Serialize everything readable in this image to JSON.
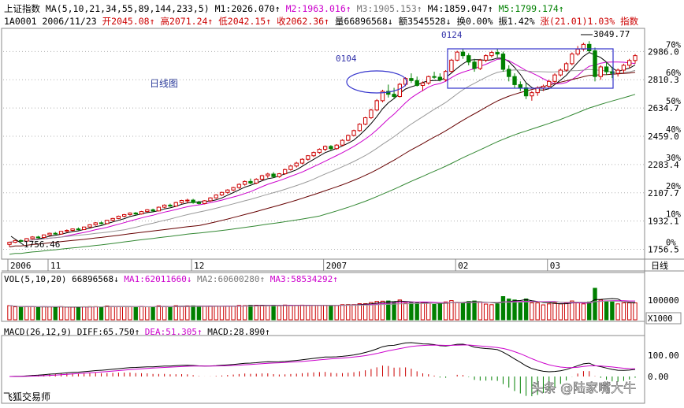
{
  "header": {
    "line1": [
      {
        "text": "上证指数",
        "color": "#000000"
      },
      {
        "text": " MA(5,10,21,34,55,89,144,233,5)",
        "color": "#000000"
      },
      {
        "text": " M1:2026.070↑",
        "color": "#000000"
      },
      {
        "text": " M2:1963.016↑",
        "color": "#cc00cc"
      },
      {
        "text": " M3:1905.153↑",
        "color": "#777777"
      },
      {
        "text": " M4:1859.047↑",
        "color": "#000000"
      },
      {
        "text": " M5:1799.174↑",
        "color": "#008000"
      }
    ],
    "line2": [
      {
        "text": "1A0001",
        "color": "#000000"
      },
      {
        "text": " 2006/11/23",
        "color": "#000000"
      },
      {
        "text": " 开2045.08↑",
        "color": "#cc0000"
      },
      {
        "text": " 高2071.24↑",
        "color": "#cc0000"
      },
      {
        "text": " 低2042.15↑",
        "color": "#cc0000"
      },
      {
        "text": " 收2062.36↑",
        "color": "#cc0000"
      },
      {
        "text": " 量66896568↓",
        "color": "#000000"
      },
      {
        "text": " 额3545528↓",
        "color": "#000000"
      },
      {
        "text": " 换0.00%",
        "color": "#000000"
      },
      {
        "text": " 振1.42%",
        "color": "#000000"
      },
      {
        "text": " 涨(21.01)1.03%",
        "color": "#cc0000"
      },
      {
        "text": " 指数",
        "color": "#cc0000"
      }
    ]
  },
  "chart_data": {
    "type": "candlestick",
    "title": "日线图",
    "dates_start": "2006/10",
    "x_labels": [
      "2006",
      "11",
      "12",
      "2007",
      "02",
      "03",
      "日线"
    ],
    "y_ticks": [
      1756.5,
      1932.1,
      2107.7,
      2283.4,
      2459.0,
      2634.7,
      2810.3,
      2986.0
    ],
    "pct_ticks": [
      "0%",
      "10%",
      "20%",
      "30%",
      "40%",
      "50%",
      "60%",
      "70%"
    ],
    "ylim": [
      1710,
      3110
    ],
    "annotations": {
      "max": "3049.77",
      "min": "1756.46",
      "label_0104": "0104",
      "label_0124": "0124"
    },
    "candles": [
      [
        1787,
        1804,
        1772,
        1800
      ],
      [
        1800,
        1815,
        1795,
        1811
      ],
      [
        1811,
        1818,
        1801,
        1807
      ],
      [
        1807,
        1826,
        1803,
        1823
      ],
      [
        1823,
        1838,
        1817,
        1833
      ],
      [
        1833,
        1840,
        1825,
        1830
      ],
      [
        1830,
        1848,
        1826,
        1846
      ],
      [
        1846,
        1860,
        1840,
        1856
      ],
      [
        1856,
        1864,
        1848,
        1851
      ],
      [
        1851,
        1870,
        1848,
        1868
      ],
      [
        1868,
        1880,
        1862,
        1874
      ],
      [
        1874,
        1886,
        1868,
        1883
      ],
      [
        1883,
        1892,
        1875,
        1879
      ],
      [
        1879,
        1897,
        1876,
        1895
      ],
      [
        1895,
        1912,
        1890,
        1909
      ],
      [
        1909,
        1925,
        1903,
        1921
      ],
      [
        1921,
        1929,
        1911,
        1916
      ],
      [
        1916,
        1940,
        1912,
        1937
      ],
      [
        1937,
        1952,
        1930,
        1948
      ],
      [
        1948,
        1966,
        1944,
        1962
      ],
      [
        1962,
        1976,
        1955,
        1972
      ],
      [
        1972,
        1986,
        1966,
        1982
      ],
      [
        1982,
        1988,
        1970,
        1976
      ],
      [
        1976,
        1995,
        1972,
        1991
      ],
      [
        1991,
        2006,
        1986,
        2002
      ],
      [
        2002,
        2009,
        1990,
        1995
      ],
      [
        1995,
        2022,
        1992,
        2018
      ],
      [
        2018,
        2036,
        2012,
        2031
      ],
      [
        2031,
        2040,
        2020,
        2025
      ],
      [
        2025,
        2052,
        2021,
        2047
      ],
      [
        2047,
        2064,
        2040,
        2060
      ],
      [
        2060,
        2071,
        2042,
        2062
      ],
      [
        2062,
        2070,
        2040,
        2047
      ],
      [
        2047,
        2058,
        2035,
        2041
      ],
      [
        2041,
        2062,
        2036,
        2058
      ],
      [
        2058,
        2080,
        2052,
        2076
      ],
      [
        2076,
        2098,
        2070,
        2094
      ],
      [
        2094,
        2114,
        2088,
        2110
      ],
      [
        2110,
        2130,
        2102,
        2125
      ],
      [
        2125,
        2145,
        2118,
        2140
      ],
      [
        2140,
        2166,
        2132,
        2160
      ],
      [
        2160,
        2184,
        2152,
        2178
      ],
      [
        2178,
        2196,
        2160,
        2168
      ],
      [
        2168,
        2198,
        2162,
        2192
      ],
      [
        2192,
        2220,
        2185,
        2214
      ],
      [
        2214,
        2232,
        2200,
        2224
      ],
      [
        2224,
        2236,
        2200,
        2208
      ],
      [
        2208,
        2230,
        2201,
        2226
      ],
      [
        2226,
        2258,
        2220,
        2252
      ],
      [
        2252,
        2280,
        2245,
        2274
      ],
      [
        2274,
        2300,
        2265,
        2292
      ],
      [
        2292,
        2322,
        2285,
        2316
      ],
      [
        2316,
        2342,
        2308,
        2338
      ],
      [
        2338,
        2364,
        2330,
        2358
      ],
      [
        2358,
        2384,
        2350,
        2378
      ],
      [
        2378,
        2402,
        2366,
        2396
      ],
      [
        2396,
        2404,
        2370,
        2382
      ],
      [
        2382,
        2410,
        2375,
        2404
      ],
      [
        2404,
        2440,
        2398,
        2434
      ],
      [
        2434,
        2470,
        2428,
        2464
      ],
      [
        2464,
        2500,
        2458,
        2494
      ],
      [
        2494,
        2540,
        2488,
        2534
      ],
      [
        2534,
        2580,
        2528,
        2574
      ],
      [
        2574,
        2630,
        2566,
        2622
      ],
      [
        2622,
        2690,
        2614,
        2680
      ],
      [
        2680,
        2748,
        2670,
        2738
      ],
      [
        2738,
        2780,
        2700,
        2720
      ],
      [
        2720,
        2760,
        2690,
        2706
      ],
      [
        2706,
        2790,
        2700,
        2782
      ],
      [
        2782,
        2826,
        2770,
        2818
      ],
      [
        2818,
        2850,
        2790,
        2805
      ],
      [
        2805,
        2830,
        2768,
        2775
      ],
      [
        2775,
        2800,
        2740,
        2790
      ],
      [
        2790,
        2836,
        2780,
        2830
      ],
      [
        2830,
        2860,
        2815,
        2826
      ],
      [
        2826,
        2850,
        2800,
        2810
      ],
      [
        2810,
        2870,
        2800,
        2862
      ],
      [
        2862,
        2940,
        2856,
        2932
      ],
      [
        2932,
        2990,
        2925,
        2982
      ],
      [
        2982,
        3000,
        2940,
        2960
      ],
      [
        2960,
        2975,
        2900,
        2920
      ],
      [
        2920,
        2940,
        2860,
        2880
      ],
      [
        2880,
        2940,
        2870,
        2932
      ],
      [
        2932,
        2968,
        2920,
        2960
      ],
      [
        2960,
        2990,
        2948,
        2980
      ],
      [
        2980,
        3000,
        2950,
        2970
      ],
      [
        2970,
        2985,
        2860,
        2875
      ],
      [
        2875,
        2900,
        2800,
        2830
      ],
      [
        2830,
        2850,
        2760,
        2780
      ],
      [
        2780,
        2800,
        2740,
        2760
      ],
      [
        2760,
        2790,
        2690,
        2710
      ],
      [
        2710,
        2740,
        2680,
        2730
      ],
      [
        2730,
        2770,
        2710,
        2760
      ],
      [
        2760,
        2780,
        2740,
        2770
      ],
      [
        2770,
        2810,
        2760,
        2800
      ],
      [
        2800,
        2850,
        2790,
        2840
      ],
      [
        2840,
        2880,
        2830,
        2870
      ],
      [
        2870,
        2920,
        2860,
        2910
      ],
      [
        2910,
        2980,
        2900,
        2970
      ],
      [
        2970,
        3020,
        2960,
        3000
      ],
      [
        3000,
        3040,
        2990,
        3030
      ],
      [
        3030,
        3050,
        2980,
        2990
      ],
      [
        2990,
        3010,
        2800,
        2830
      ],
      [
        2830,
        2900,
        2810,
        2890
      ],
      [
        2890,
        2920,
        2840,
        2860
      ],
      [
        2860,
        2890,
        2820,
        2850
      ],
      [
        2850,
        2880,
        2830,
        2870
      ],
      [
        2870,
        2910,
        2850,
        2900
      ],
      [
        2900,
        2940,
        2880,
        2930
      ],
      [
        2930,
        2970,
        2910,
        2960
      ]
    ]
  },
  "volume": {
    "header": [
      {
        "text": "VOL(5,10,20)",
        "color": "#000000"
      },
      {
        "text": " 66896568↓",
        "color": "#000000"
      },
      {
        "text": " MA1:62011660↓",
        "color": "#cc00cc"
      },
      {
        "text": " MA2:60600280↑",
        "color": "#777777"
      },
      {
        "text": " MA3:58534292↑",
        "color": "#cc00cc"
      }
    ],
    "tick": "100000",
    "unit": "X1000"
  },
  "macd": {
    "header": [
      {
        "text": "MACD(26,12,9)",
        "color": "#000000"
      },
      {
        "text": " DIFF:65.750↑",
        "color": "#000000"
      },
      {
        "text": " DEA:51.305↑",
        "color": "#cc00cc"
      },
      {
        "text": " MACD:28.890↑",
        "color": "#000000"
      }
    ],
    "ticks": [
      "100.00",
      "0.00"
    ]
  },
  "footer": {
    "software": "飞狐交易师",
    "watermark": "头条 @陆家嘴大牛"
  },
  "colors": {
    "up": "#cc0000",
    "down": "#008000",
    "ma5": "#000000",
    "ma10": "#cc00cc",
    "ma21": "#999999",
    "ma34": "#660000",
    "ma55": "#338833",
    "grid": "#b0b0b0",
    "box": "#3333cc"
  }
}
